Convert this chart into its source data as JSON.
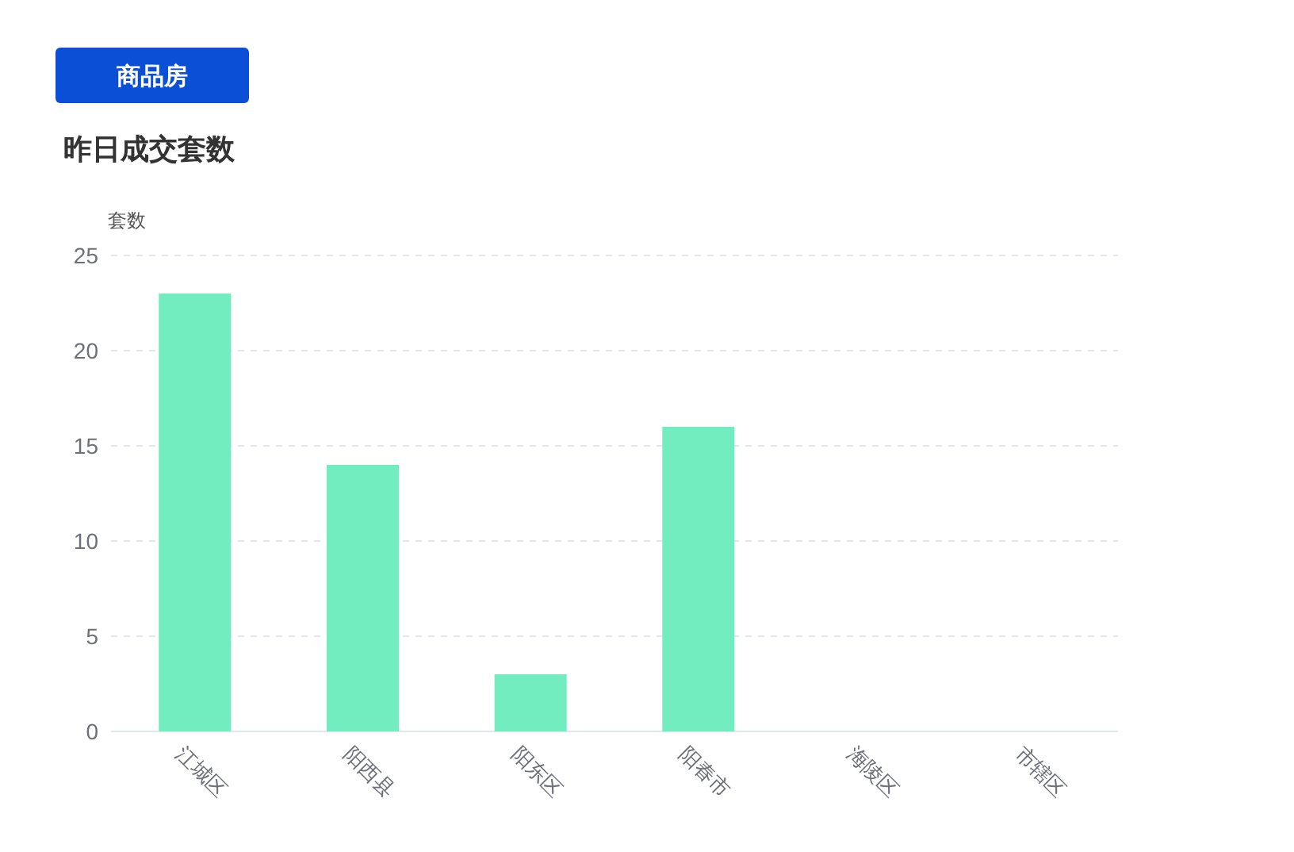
{
  "chart_data": {
    "type": "bar",
    "title": "昨日成交套数",
    "annotations": [
      "商品房"
    ],
    "ylabel": "套数",
    "categories": [
      "江城区",
      "阳西县",
      "阳东区",
      "阳春市",
      "海陵区",
      "市辖区"
    ],
    "values": [
      23,
      14,
      3,
      16,
      0,
      0
    ],
    "color": "#72edc0",
    "ylim": [
      0,
      25
    ],
    "yticks": [
      0,
      5,
      10,
      15,
      20,
      25
    ],
    "grid": "y"
  }
}
